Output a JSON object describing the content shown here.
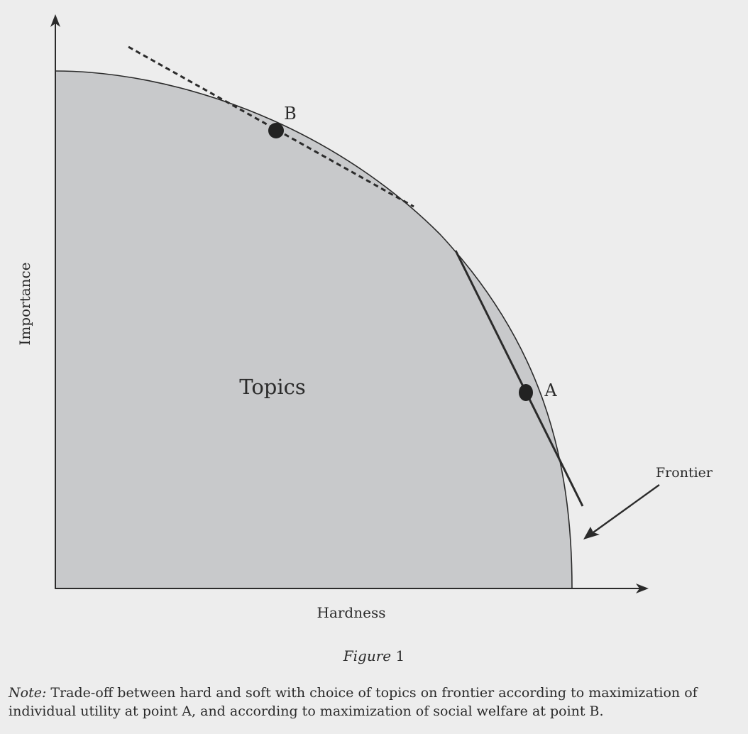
{
  "diagram": {
    "y_axis_label": "Importance",
    "x_axis_label": "Hardness",
    "region_label": "Topics",
    "point_a_label": "A",
    "point_b_label": "B",
    "frontier_label": "Frontier",
    "colors": {
      "background": "#ededed",
      "region_fill": "#c8c9cb",
      "ink": "#2b2b2b"
    }
  },
  "caption": {
    "figure_word": "Figure",
    "figure_number": "1"
  },
  "note": {
    "label": "Note:",
    "text": "Trade-off between hard and soft with choice of topics on frontier according to maximization of individual utility at point A, and according to maximization of social welfare at point B."
  }
}
